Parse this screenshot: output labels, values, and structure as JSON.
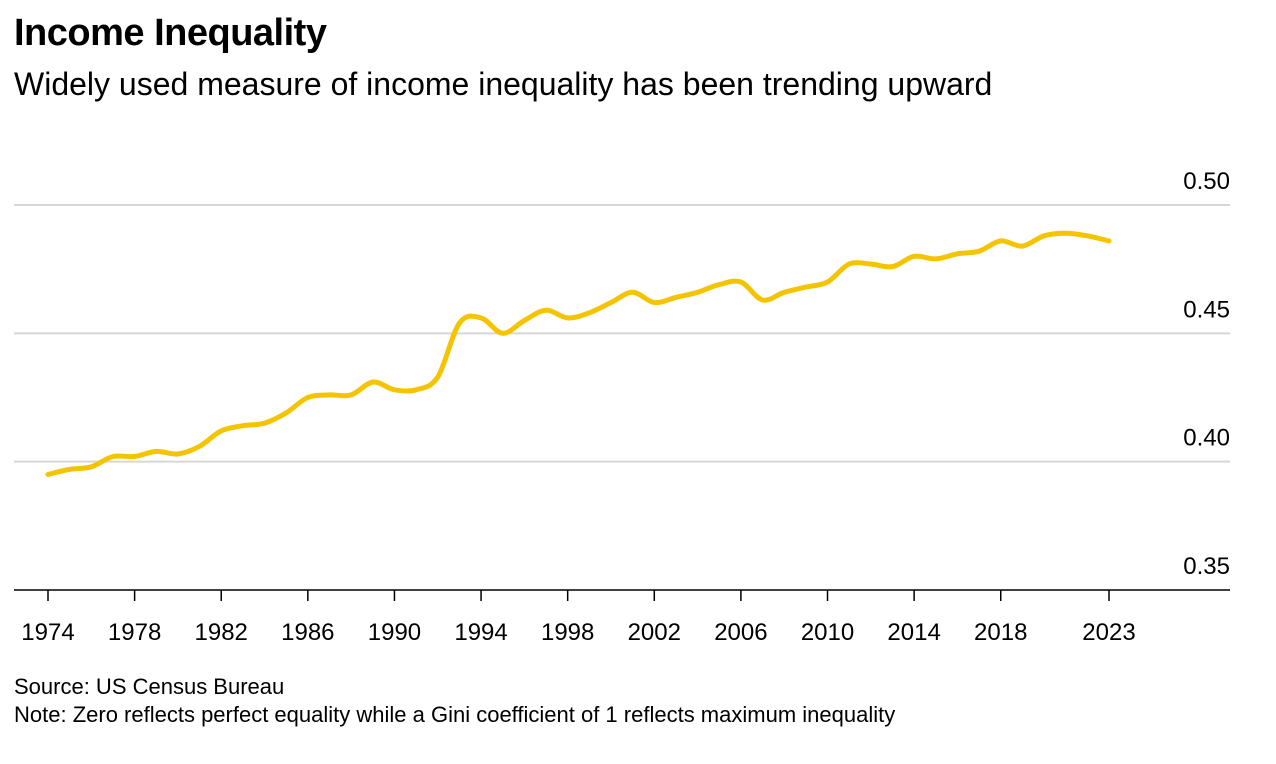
{
  "header": {
    "title": "Income Inequality",
    "subtitle": "Widely used measure of income inequality has been trending upward"
  },
  "footer": {
    "source": "Source: US Census Bureau",
    "note": "Note: Zero reflects perfect equality while a Gini coefficient of 1 reflects maximum inequality"
  },
  "colors": {
    "line": "#f5c400",
    "grid": "#d6d6d6",
    "axis": "#000000"
  },
  "chart_data": {
    "type": "line",
    "title": "Income Inequality",
    "xlabel": "",
    "ylabel": "",
    "ylim": [
      0.35,
      0.5
    ],
    "yticks": [
      0.35,
      0.4,
      0.45,
      0.5
    ],
    "ytick_labels": [
      "0.35",
      "0.40",
      "0.45",
      "0.50"
    ],
    "xlim": [
      1973,
      2026
    ],
    "xticks": [
      1974,
      1978,
      1982,
      1986,
      1990,
      1994,
      1998,
      2002,
      2006,
      2010,
      2014,
      2018,
      2023
    ],
    "xtick_labels": [
      "1974",
      "1978",
      "1982",
      "1986",
      "1990",
      "1994",
      "1998",
      "2002",
      "2006",
      "2010",
      "2014",
      "2018",
      "2023"
    ],
    "grid": true,
    "series": [
      {
        "name": "Gini coefficient",
        "x": [
          1974,
          1975,
          1976,
          1977,
          1978,
          1979,
          1980,
          1981,
          1982,
          1983,
          1984,
          1985,
          1986,
          1987,
          1988,
          1989,
          1990,
          1991,
          1992,
          1993,
          1994,
          1995,
          1996,
          1997,
          1998,
          1999,
          2000,
          2001,
          2002,
          2003,
          2004,
          2005,
          2006,
          2007,
          2008,
          2009,
          2010,
          2011,
          2012,
          2013,
          2014,
          2015,
          2016,
          2017,
          2018,
          2019,
          2020,
          2021,
          2022,
          2023
        ],
        "values": [
          0.395,
          0.397,
          0.398,
          0.402,
          0.402,
          0.404,
          0.403,
          0.406,
          0.412,
          0.414,
          0.415,
          0.419,
          0.425,
          0.426,
          0.426,
          0.431,
          0.428,
          0.428,
          0.433,
          0.454,
          0.456,
          0.45,
          0.455,
          0.459,
          0.456,
          0.458,
          0.462,
          0.466,
          0.462,
          0.464,
          0.466,
          0.469,
          0.47,
          0.463,
          0.466,
          0.468,
          0.47,
          0.477,
          0.477,
          0.476,
          0.48,
          0.479,
          0.481,
          0.482,
          0.486,
          0.484,
          0.488,
          0.489,
          0.488,
          0.486
        ]
      }
    ]
  }
}
